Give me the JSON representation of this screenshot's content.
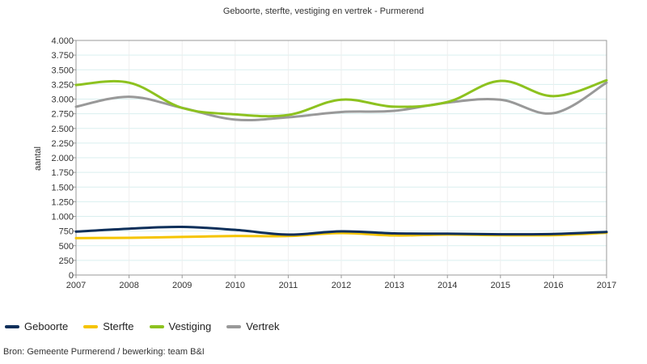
{
  "chart_data": {
    "type": "line",
    "title": "Geboorte, sterfte, vestiging en vertrek - Purmerend",
    "xlabel": "",
    "ylabel": "aantal",
    "x": [
      "2007",
      "2008",
      "2009",
      "2010",
      "2011",
      "2012",
      "2013",
      "2014",
      "2015",
      "2016",
      "2017"
    ],
    "ylim": [
      0,
      4000
    ],
    "yticks": [
      0,
      250,
      500,
      750,
      1000,
      1250,
      1500,
      1750,
      2000,
      2250,
      2500,
      2750,
      3000,
      3250,
      3500,
      3750,
      4000
    ],
    "ytick_labels": [
      "0",
      "250",
      "500",
      "750",
      "1.000",
      "1.250",
      "1.500",
      "1.750",
      "2.000",
      "2.250",
      "2.500",
      "2.750",
      "3.000",
      "3.250",
      "3.500",
      "3.750",
      "4.000"
    ],
    "grid": true,
    "legend_position": "bottom-left",
    "series": [
      {
        "name": "Geboorte",
        "color": "#0d2f5a",
        "values": [
          740,
          790,
          820,
          770,
          690,
          745,
          710,
          705,
          695,
          700,
          735
        ]
      },
      {
        "name": "Sterfte",
        "color": "#f5c400",
        "values": [
          630,
          635,
          650,
          665,
          665,
          715,
          675,
          690,
          680,
          680,
          720
        ]
      },
      {
        "name": "Vestiging",
        "color": "#8dc21f",
        "values": [
          3240,
          3280,
          2850,
          2740,
          2730,
          2990,
          2870,
          2950,
          3310,
          3050,
          3320
        ]
      },
      {
        "name": "Vertrek",
        "color": "#999999",
        "values": [
          2870,
          3040,
          2850,
          2650,
          2690,
          2780,
          2800,
          2940,
          2990,
          2760,
          3280
        ]
      }
    ]
  },
  "footer": {
    "source": "Bron: Gemeente Purmerend / bewerking: team B&I"
  }
}
